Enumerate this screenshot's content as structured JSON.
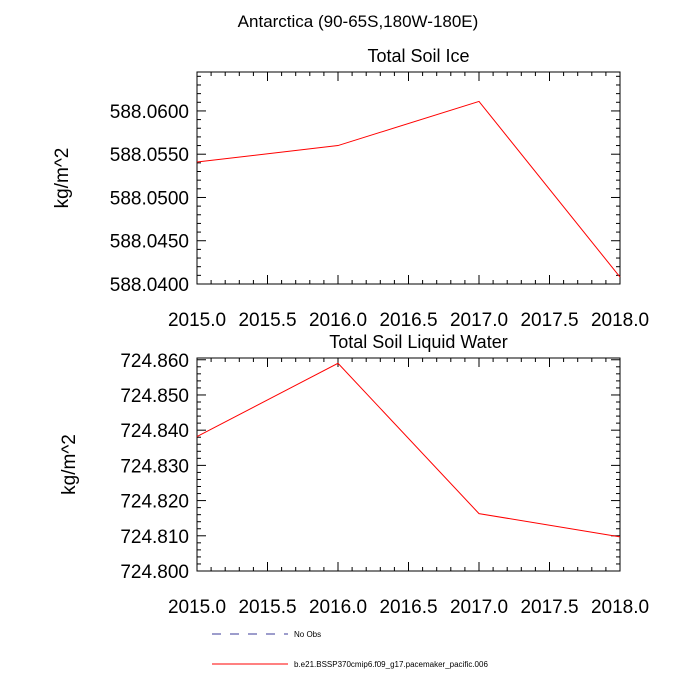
{
  "figure": {
    "title": "Antarctica (90-65S,180W-180E)"
  },
  "colors": {
    "line": "#ff0000",
    "obs": "#3b3b9a",
    "axis": "#000000"
  },
  "legend": {
    "placement": "bottom",
    "entries": [
      {
        "label": "No Obs",
        "style": "dashed",
        "color": "#3b3b9a"
      },
      {
        "label": "b.e21.BSSP370cmip6.f09_g17.pacemaker_pacific.006",
        "style": "solid",
        "color": "#ff0000"
      }
    ]
  },
  "chart_data": [
    {
      "type": "line",
      "title": "Total Soil Ice",
      "xlabel": "",
      "ylabel": "kg/m^2",
      "xlim": [
        2015.0,
        2018.0
      ],
      "ylim": [
        588.04,
        588.0645
      ],
      "x_ticks": [
        2015.0,
        2015.5,
        2016.0,
        2016.5,
        2017.0,
        2017.5,
        2018.0
      ],
      "x_tick_labels": [
        "2015.0",
        "2015.5",
        "2016.0",
        "2016.5",
        "2017.0",
        "2017.5",
        "2018.0"
      ],
      "y_ticks": [
        588.04,
        588.045,
        588.05,
        588.055,
        588.06
      ],
      "y_tick_labels": [
        "588.0400",
        "588.0450",
        "588.0500",
        "588.0550",
        "588.0600"
      ],
      "grid": false,
      "series": [
        {
          "x": [
            2015.0,
            2016.0,
            2017.0,
            2018.0
          ],
          "values": [
            588.0541,
            588.056,
            588.0611,
            588.0408
          ]
        }
      ]
    },
    {
      "type": "line",
      "title": "Total Soil Liquid Water",
      "xlabel": "",
      "ylabel": "kg/m^2",
      "xlim": [
        2015.0,
        2018.0
      ],
      "ylim": [
        724.8,
        724.8605
      ],
      "x_ticks": [
        2015.0,
        2015.5,
        2016.0,
        2016.5,
        2017.0,
        2017.5,
        2018.0
      ],
      "x_tick_labels": [
        "2015.0",
        "2015.5",
        "2016.0",
        "2016.5",
        "2017.0",
        "2017.5",
        "2018.0"
      ],
      "y_ticks": [
        724.8,
        724.81,
        724.82,
        724.83,
        724.84,
        724.85,
        724.86
      ],
      "y_tick_labels": [
        "724.800",
        "724.810",
        "724.820",
        "724.830",
        "724.840",
        "724.850",
        "724.860"
      ],
      "grid": false,
      "series": [
        {
          "x": [
            2015.0,
            2016.0,
            2017.0,
            2018.0
          ],
          "values": [
            724.8382,
            724.859,
            724.8163,
            724.8097
          ]
        }
      ]
    }
  ]
}
